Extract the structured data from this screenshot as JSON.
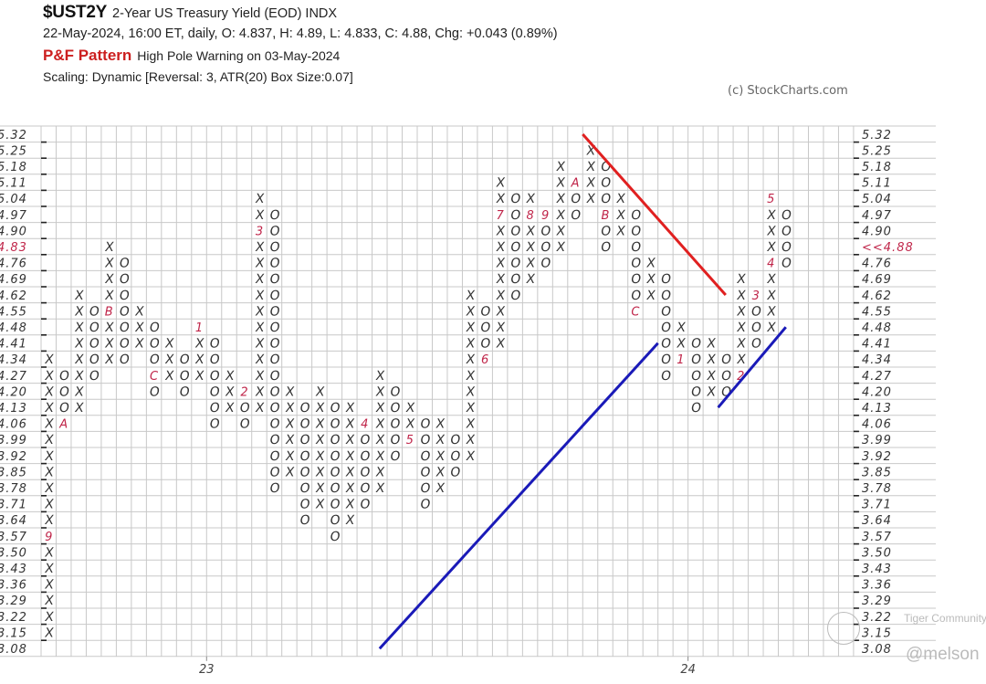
{
  "header": {
    "symbol": "$UST2Y",
    "name": "2-Year US Treasury Yield (EOD)  INDX",
    "quote": "22-May-2024, 16:00 ET, daily, O: 4.837, H: 4.89, L: 4.833, C: 4.88, Chg: +0.043 (0.89%)",
    "pattern_label": "P&F Pattern",
    "pattern_text": "High Pole Warning on 03-May-2024",
    "scaling": "Scaling: Dynamic [Reversal: 3, ATR(20) Box Size:0.07]",
    "copyright": "(c) StockCharts.com"
  },
  "watermark": {
    "community": "Tiger Community",
    "user": "@melson"
  },
  "colors": {
    "x_mark": "#333333",
    "o_mark": "#333333",
    "month_marker": "#c0264a",
    "resistance_line": "#e02020",
    "support_line": "#1a1ab8",
    "pattern_red": "#cc1f1f",
    "grid": "#c8c8c8"
  },
  "chart_data": {
    "type": "point-and-figure",
    "box_size": 0.07,
    "reversal": 3,
    "grid": true,
    "price_levels": [
      "5.32",
      "5.25",
      "5.18",
      "5.11",
      "5.04",
      "4.97",
      "4.90",
      "4.83",
      "4.76",
      "4.69",
      "4.62",
      "4.55",
      "4.48",
      "4.41",
      "4.34",
      "4.27",
      "4.20",
      "4.13",
      "4.06",
      "3.99",
      "3.92",
      "3.85",
      "3.78",
      "3.71",
      "3.64",
      "3.57",
      "3.50",
      "3.43",
      "3.36",
      "3.29",
      "3.22",
      "3.15",
      "3.08"
    ],
    "highlight_left_label": "4.83",
    "current_price_label": "<<4.88",
    "current_price_level": "4.83",
    "year_labels": [
      {
        "label": "23",
        "column": 10.5
      },
      {
        "label": "24",
        "column": 42.5
      }
    ],
    "columns": [
      {
        "type": "X",
        "low": 3.15,
        "high": 4.34,
        "markers": {
          "3.57": "9"
        }
      },
      {
        "type": "O",
        "low": 4.06,
        "high": 4.27,
        "markers": {
          "4.06": "A"
        }
      },
      {
        "type": "X",
        "low": 4.13,
        "high": 4.62,
        "markers": {}
      },
      {
        "type": "O",
        "low": 4.27,
        "high": 4.55,
        "markers": {}
      },
      {
        "type": "X",
        "low": 4.34,
        "high": 4.83,
        "markers": {
          "4.55": "B"
        }
      },
      {
        "type": "O",
        "low": 4.34,
        "high": 4.76,
        "markers": {}
      },
      {
        "type": "X",
        "low": 4.41,
        "high": 4.55,
        "markers": {}
      },
      {
        "type": "O",
        "low": 4.2,
        "high": 4.48,
        "markers": {
          "4.27": "C"
        }
      },
      {
        "type": "X",
        "low": 4.27,
        "high": 4.41,
        "markers": {}
      },
      {
        "type": "O",
        "low": 4.2,
        "high": 4.34,
        "markers": {}
      },
      {
        "type": "X",
        "low": 4.27,
        "high": 4.48,
        "markers": {
          "4.48": "1"
        }
      },
      {
        "type": "O",
        "low": 4.06,
        "high": 4.41,
        "markers": {}
      },
      {
        "type": "X",
        "low": 4.13,
        "high": 4.27,
        "markers": {}
      },
      {
        "type": "O",
        "low": 4.06,
        "high": 4.2,
        "markers": {
          "4.20": "2"
        }
      },
      {
        "type": "X",
        "low": 4.13,
        "high": 5.04,
        "markers": {
          "4.90": "3"
        }
      },
      {
        "type": "O",
        "low": 3.78,
        "high": 4.97,
        "markers": {}
      },
      {
        "type": "X",
        "low": 3.85,
        "high": 4.2,
        "markers": {}
      },
      {
        "type": "O",
        "low": 3.64,
        "high": 4.13,
        "markers": {}
      },
      {
        "type": "X",
        "low": 3.71,
        "high": 4.2,
        "markers": {}
      },
      {
        "type": "O",
        "low": 3.57,
        "high": 4.13,
        "markers": {}
      },
      {
        "type": "X",
        "low": 3.64,
        "high": 4.13,
        "markers": {}
      },
      {
        "type": "O",
        "low": 3.71,
        "high": 4.06,
        "markers": {
          "4.06": "4"
        }
      },
      {
        "type": "X",
        "low": 3.78,
        "high": 4.27,
        "markers": {}
      },
      {
        "type": "O",
        "low": 3.92,
        "high": 4.2,
        "markers": {}
      },
      {
        "type": "X",
        "low": 3.99,
        "high": 4.13,
        "markers": {
          "3.99": "5"
        }
      },
      {
        "type": "O",
        "low": 3.71,
        "high": 4.06,
        "markers": {}
      },
      {
        "type": "X",
        "low": 3.78,
        "high": 4.06,
        "markers": {}
      },
      {
        "type": "O",
        "low": 3.85,
        "high": 3.99,
        "markers": {}
      },
      {
        "type": "X",
        "low": 3.92,
        "high": 4.62,
        "markers": {}
      },
      {
        "type": "O",
        "low": 4.34,
        "high": 4.55,
        "markers": {
          "4.34": "6"
        }
      },
      {
        "type": "X",
        "low": 4.41,
        "high": 5.11,
        "markers": {
          "4.97": "7"
        }
      },
      {
        "type": "O",
        "low": 4.62,
        "high": 5.04,
        "markers": {}
      },
      {
        "type": "X",
        "low": 4.69,
        "high": 5.04,
        "markers": {
          "4.97": "8"
        }
      },
      {
        "type": "O",
        "low": 4.76,
        "high": 4.97,
        "markers": {
          "4.97": "9"
        }
      },
      {
        "type": "X",
        "low": 4.83,
        "high": 5.18,
        "markers": {}
      },
      {
        "type": "O",
        "low": 4.97,
        "high": 5.11,
        "markers": {
          "5.11": "A"
        }
      },
      {
        "type": "X",
        "low": 5.04,
        "high": 5.25,
        "markers": {}
      },
      {
        "type": "O",
        "low": 4.83,
        "high": 5.18,
        "markers": {
          "4.97": "B"
        }
      },
      {
        "type": "X",
        "low": 4.9,
        "high": 5.04,
        "markers": {}
      },
      {
        "type": "O",
        "low": 4.55,
        "high": 4.97,
        "markers": {
          "4.55": "C"
        }
      },
      {
        "type": "X",
        "low": 4.62,
        "high": 4.76,
        "markers": {}
      },
      {
        "type": "O",
        "low": 4.27,
        "high": 4.69,
        "markers": {}
      },
      {
        "type": "X",
        "low": 4.34,
        "high": 4.48,
        "markers": {
          "4.34": "1"
        }
      },
      {
        "type": "O",
        "low": 4.13,
        "high": 4.41,
        "markers": {}
      },
      {
        "type": "X",
        "low": 4.2,
        "high": 4.41,
        "markers": {}
      },
      {
        "type": "O",
        "low": 4.2,
        "high": 4.34,
        "markers": {}
      },
      {
        "type": "X",
        "low": 4.27,
        "high": 4.69,
        "markers": {
          "4.27": "2"
        }
      },
      {
        "type": "O",
        "low": 4.41,
        "high": 4.62,
        "markers": {
          "4.62": "3"
        }
      },
      {
        "type": "X",
        "low": 4.48,
        "high": 5.04,
        "markers": {
          "4.76": "4",
          "5.04": "5"
        }
      },
      {
        "type": "O",
        "low": 4.76,
        "high": 4.97,
        "markers": {}
      }
    ],
    "trend_lines": [
      {
        "kind": "bearish-resistance",
        "color": "#e02020",
        "from": {
          "column": 36,
          "price": 5.32
        },
        "to": {
          "column": 45.5,
          "price": 4.62
        }
      },
      {
        "kind": "bullish-support",
        "color": "#1a1ab8",
        "from": {
          "column": 22.5,
          "price": 3.08
        },
        "to": {
          "column": 41,
          "price": 4.41
        }
      },
      {
        "kind": "bullish-support",
        "color": "#1a1ab8",
        "from": {
          "column": 45,
          "price": 4.13
        },
        "to": {
          "column": 49.5,
          "price": 4.48
        }
      }
    ]
  }
}
